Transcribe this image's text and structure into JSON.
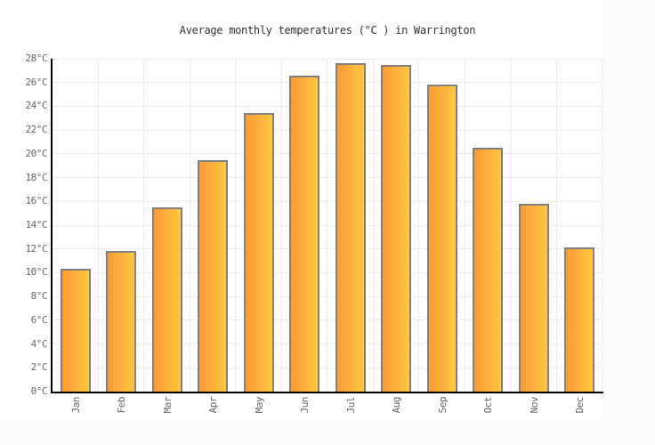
{
  "chart_data": {
    "type": "bar",
    "title": "Average monthly temperatures (°C ) in Warrington",
    "categories": [
      "Jan",
      "Feb",
      "Mar",
      "Apr",
      "May",
      "Jun",
      "Jul",
      "Aug",
      "Sep",
      "Oct",
      "Nov",
      "Dec"
    ],
    "values": [
      10.3,
      11.8,
      15.5,
      19.5,
      23.4,
      26.6,
      27.6,
      27.5,
      25.8,
      20.5,
      15.8,
      12.1
    ],
    "series_name": "Average monthly temperature (°C)",
    "xlabel": "",
    "ylabel": "",
    "ylim": [
      0,
      28
    ],
    "ytick_step": 2,
    "ytick_labels": [
      "0°C",
      "2°C",
      "4°C",
      "6°C",
      "8°C",
      "10°C",
      "12°C",
      "14°C",
      "16°C",
      "18°C",
      "20°C",
      "22°C",
      "24°C",
      "26°C",
      "28°C"
    ],
    "grid": true,
    "legend": "none",
    "colors": {
      "bar_gradient_left": "#fa9a35",
      "bar_gradient_right": "#ffc840",
      "bar_border": "#808080",
      "gridline": "#ececec",
      "axis": "#000000",
      "tick_label": "#666666",
      "title": "#333333",
      "plot_background": "#ffffff",
      "outer_background": "#fafafa"
    }
  }
}
